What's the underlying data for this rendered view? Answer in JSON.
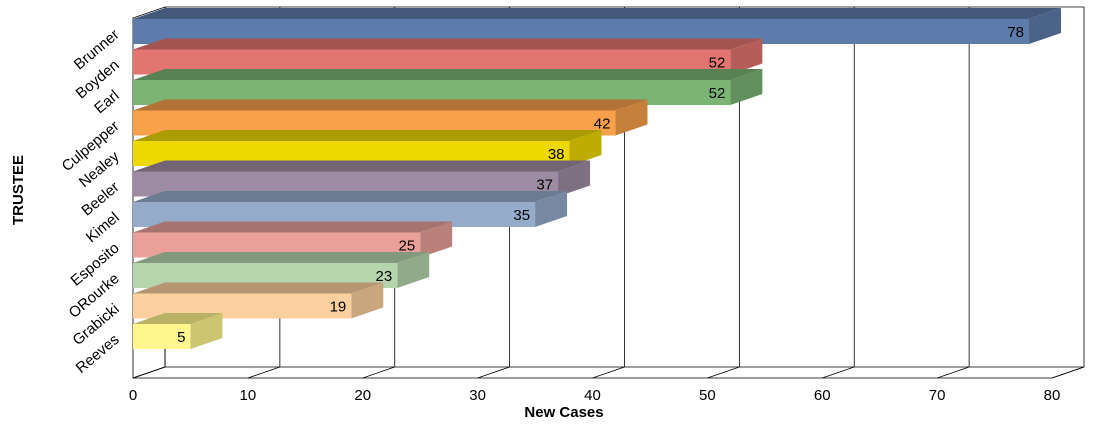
{
  "chart_data": {
    "type": "bar",
    "orientation": "horizontal",
    "style": "3d",
    "xlabel": "New Cases",
    "ylabel": "TRUSTEE",
    "xlim": [
      0,
      80
    ],
    "xticks": [
      0,
      10,
      20,
      30,
      40,
      50,
      60,
      70,
      80
    ],
    "grid": "vertical",
    "legend": "none",
    "categories": [
      "Brunner",
      "Boyden",
      "Earl",
      "Culpepper",
      "Nealey",
      "Beeler",
      "Kimel",
      "Esposito",
      "ORourke",
      "Grabicki",
      "Reeves"
    ],
    "values": [
      78,
      52,
      52,
      42,
      38,
      37,
      35,
      25,
      23,
      19,
      5
    ],
    "colors": [
      "#5E7CAB",
      "#E2756F",
      "#7BB474",
      "#F9A04B",
      "#EDD800",
      "#9D8BA3",
      "#95ABCA",
      "#E8A099",
      "#B5D5AD",
      "#FCCF9E",
      "#FFF68E"
    ]
  }
}
